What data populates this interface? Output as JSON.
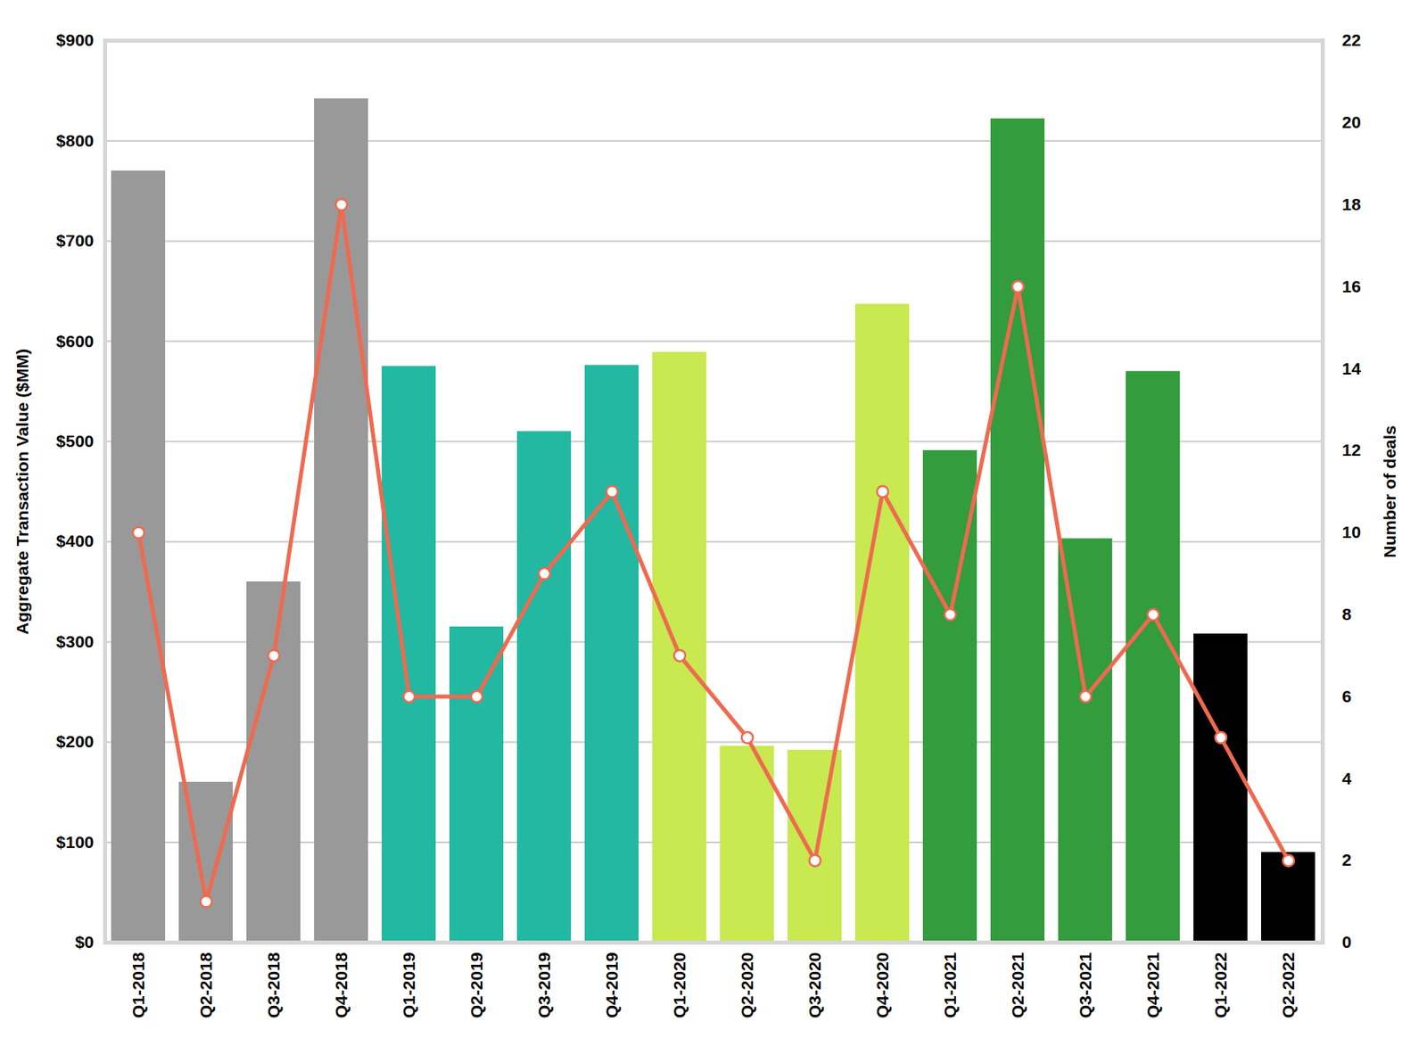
{
  "chart_data": {
    "type": "bar",
    "categories": [
      "Q1-2018",
      "Q2-2018",
      "Q3-2018",
      "Q4-2018",
      "Q1-2019",
      "Q2-2019",
      "Q3-2019",
      "Q4-2019",
      "Q1-2020",
      "Q2-2020",
      "Q3-2020",
      "Q4-2020",
      "Q1-2021",
      "Q2-2021",
      "Q3-2021",
      "Q4-2021",
      "Q1-2022",
      "Q2-2022"
    ],
    "y_label": "Aggregate Transaction Value ($MM)",
    "y2_label": "Number of deals",
    "ylim": [
      0,
      900
    ],
    "yticks": [
      {
        "value": 0,
        "label": "$0"
      },
      {
        "value": 100,
        "label": "$100"
      },
      {
        "value": 200,
        "label": "$200"
      },
      {
        "value": 300,
        "label": "$300"
      },
      {
        "value": 400,
        "label": "$400"
      },
      {
        "value": 500,
        "label": "$500"
      },
      {
        "value": 600,
        "label": "$600"
      },
      {
        "value": 700,
        "label": "$700"
      },
      {
        "value": 800,
        "label": "$800"
      },
      {
        "value": 900,
        "label": "$900"
      }
    ],
    "y2lim": [
      0,
      22
    ],
    "y2ticks": [
      0,
      2,
      4,
      6,
      8,
      10,
      12,
      14,
      16,
      18,
      20,
      22
    ],
    "grid": true,
    "series": [
      {
        "type": "bar",
        "colors": [
          "#999999",
          "#999999",
          "#999999",
          "#999999",
          "#22b8a2",
          "#22b8a2",
          "#22b8a2",
          "#22b8a2",
          "#c8e94f",
          "#c8e94f",
          "#c8e94f",
          "#c8e94f",
          "#339c3c",
          "#339c3c",
          "#339c3c",
          "#339c3c",
          "#000000",
          "#000000"
        ],
        "values": [
          770,
          160,
          360,
          842,
          575,
          315,
          510,
          576,
          589,
          196,
          192,
          637,
          491,
          822,
          403,
          570,
          308,
          90
        ]
      },
      {
        "type": "line",
        "axis": "y2",
        "color": "#ee6a50",
        "marker": "circle",
        "values": [
          10,
          1,
          7,
          18,
          6,
          6,
          9,
          11,
          7,
          5,
          2,
          11,
          8,
          16,
          6,
          8,
          5,
          2
        ]
      }
    ]
  }
}
